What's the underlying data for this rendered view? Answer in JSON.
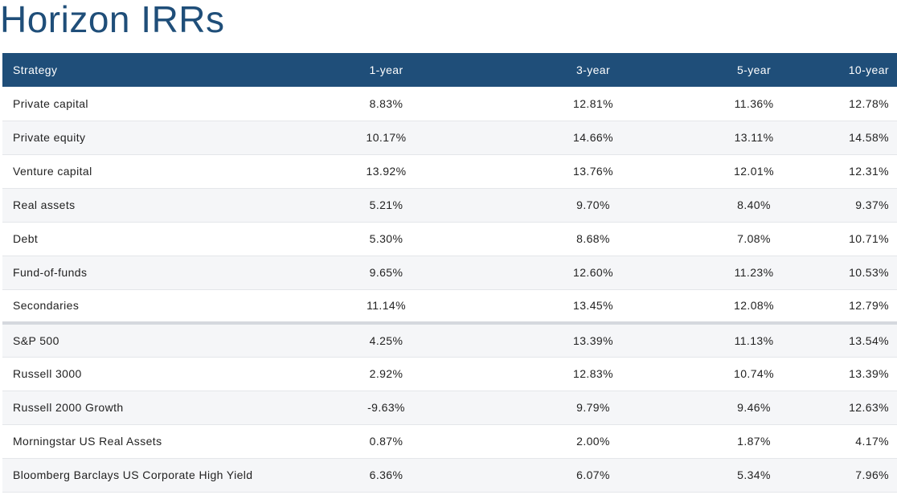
{
  "title": "Horizon IRRs",
  "table": {
    "headers": [
      "Strategy",
      "1-year",
      "3-year",
      "5-year",
      "10-year"
    ],
    "rows": [
      {
        "strategy": "Private capital",
        "y1": "8.83%",
        "y3": "12.81%",
        "y5": "11.36%",
        "y10": "12.78%"
      },
      {
        "strategy": "Private equity",
        "y1": "10.17%",
        "y3": "14.66%",
        "y5": "13.11%",
        "y10": "14.58%"
      },
      {
        "strategy": "Venture capital",
        "y1": "13.92%",
        "y3": "13.76%",
        "y5": "12.01%",
        "y10": "12.31%"
      },
      {
        "strategy": "Real assets",
        "y1": "5.21%",
        "y3": "9.70%",
        "y5": "8.40%",
        "y10": "9.37%"
      },
      {
        "strategy": "Debt",
        "y1": "5.30%",
        "y3": "8.68%",
        "y5": "7.08%",
        "y10": "10.71%"
      },
      {
        "strategy": "Fund-of-funds",
        "y1": "9.65%",
        "y3": "12.60%",
        "y5": "11.23%",
        "y10": "10.53%"
      },
      {
        "strategy": "Secondaries",
        "y1": "11.14%",
        "y3": "13.45%",
        "y5": "12.08%",
        "y10": "12.79%"
      },
      {
        "strategy": "S&P 500",
        "y1": "4.25%",
        "y3": "13.39%",
        "y5": "11.13%",
        "y10": "13.54%"
      },
      {
        "strategy": "Russell 3000",
        "y1": "2.92%",
        "y3": "12.83%",
        "y5": "10.74%",
        "y10": "13.39%"
      },
      {
        "strategy": "Russell 2000 Growth",
        "y1": "-9.63%",
        "y3": "9.79%",
        "y5": "9.46%",
        "y10": "12.63%"
      },
      {
        "strategy": "Morningstar US Real Assets",
        "y1": "0.87%",
        "y3": "2.00%",
        "y5": "1.87%",
        "y10": "4.17%"
      },
      {
        "strategy": "Bloomberg Barclays US Corporate High Yield",
        "y1": "6.36%",
        "y3": "6.07%",
        "y5": "5.34%",
        "y10": "7.96%"
      }
    ]
  },
  "colors": {
    "title": "#1f4e79",
    "header_bg": "#1f4e79",
    "header_text": "#ffffff",
    "row_alt_bg": "#f5f6f8",
    "group_divider": "#d5d8de"
  }
}
